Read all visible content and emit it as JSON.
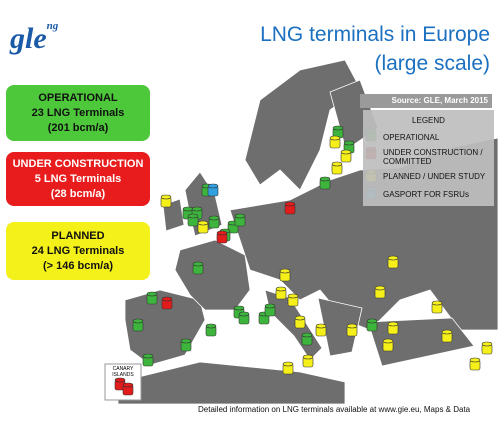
{
  "logo": {
    "text": "gle",
    "superscript": "ng"
  },
  "title": {
    "line1": "LNG terminals in Europe",
    "line2": "(large scale)"
  },
  "source": "Source: GLE,  March 2015",
  "summary": [
    {
      "status": "OPERATIONAL",
      "count": "23 LNG Terminals",
      "capacity": "(201 bcm/a)"
    },
    {
      "status": "UNDER CONSTRUCTION",
      "count": "5 LNG Terminals",
      "capacity": "(28 bcm/a)"
    },
    {
      "status": "PLANNED",
      "count": "24 LNG Terminals",
      "capacity": "(> 146 bcm/a)"
    }
  ],
  "legend": {
    "title": "LEGEND",
    "items": [
      "OPERATIONAL",
      "UNDER CONSTRUCTION / COMMITTED",
      "PLANNED / UNDER STUDY",
      "GASPORT FOR FSRUs"
    ]
  },
  "inset_label": "CANARY ISLANDS",
  "footer": "Detailed information on LNG terminals available at www.gie.eu,  Maps & Data"
}
